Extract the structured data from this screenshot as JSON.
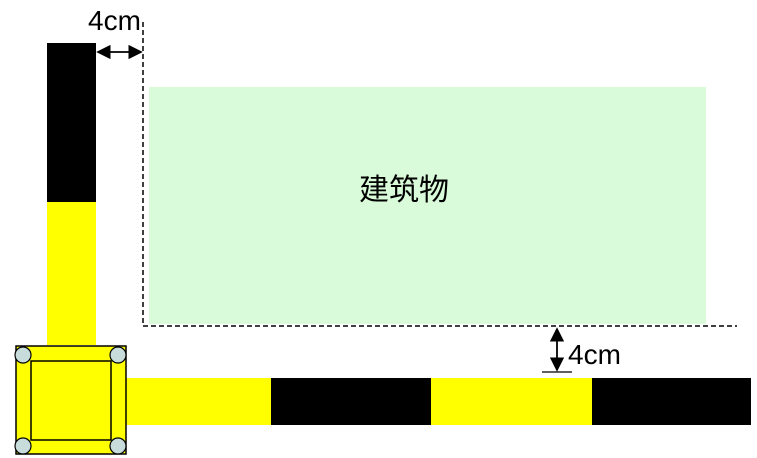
{
  "diagram": {
    "building_label": "建筑物",
    "top_gap_label": "4cm",
    "bottom_gap_label": "4cm"
  },
  "colors": {
    "building_fill": "#d9fbd9",
    "stripe_yellow": "#ffff00",
    "stripe_black": "#000000",
    "bolt_fill": "#c8dcdc",
    "outline": "#000000"
  }
}
